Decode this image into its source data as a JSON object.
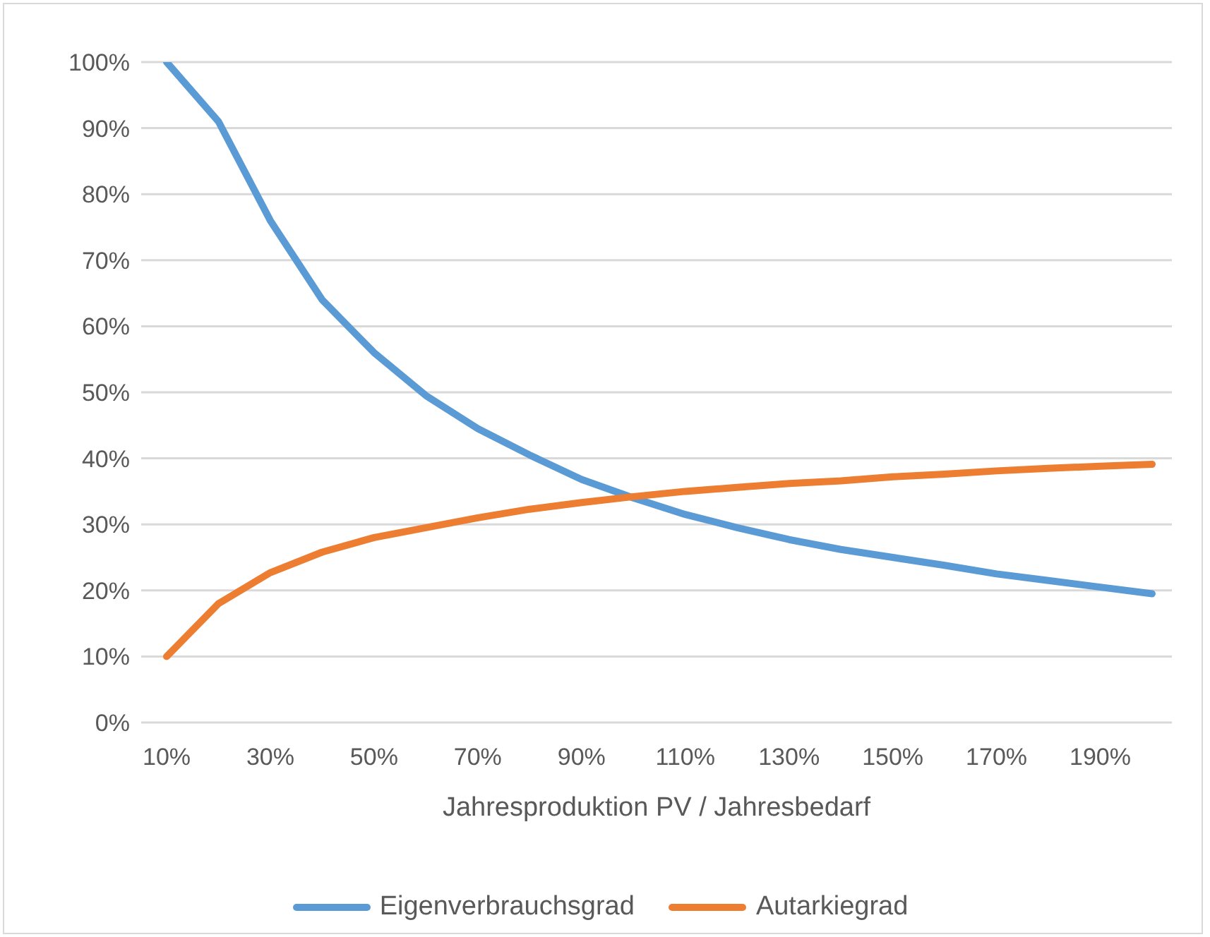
{
  "chart_data": {
    "type": "line",
    "xlabel": "Jahresproduktion PV / Jahresbedarf",
    "categories": [
      "10%",
      null,
      "30%",
      null,
      "50%",
      null,
      "70%",
      null,
      "90%",
      null,
      "110%",
      null,
      "130%",
      null,
      "150%",
      null,
      "170%",
      null,
      "190%",
      null
    ],
    "series": [
      {
        "name": "Eigenverbrauchsgrad",
        "color": "#5b9bd5",
        "values": [
          100,
          91,
          76,
          64,
          56,
          49.5,
          44.5,
          40.5,
          36.8,
          34,
          31.5,
          29.5,
          27.7,
          26.2,
          25,
          23.8,
          22.5,
          21.5,
          20.5,
          19.5
        ]
      },
      {
        "name": "Autarkiegrad",
        "color": "#ed7d31",
        "values": [
          10,
          18,
          22.7,
          25.8,
          28,
          29.5,
          31,
          32.3,
          33.3,
          34.2,
          35,
          35.6,
          36.2,
          36.6,
          37.2,
          37.6,
          38.1,
          38.5,
          38.8,
          39.1
        ]
      }
    ],
    "ylim": [
      0,
      100
    ],
    "yticks": [
      {
        "value": 0,
        "label": "0%"
      },
      {
        "value": 10,
        "label": "10%"
      },
      {
        "value": 20,
        "label": "20%"
      },
      {
        "value": 30,
        "label": "30%"
      },
      {
        "value": 40,
        "label": "40%"
      },
      {
        "value": 50,
        "label": "50%"
      },
      {
        "value": 60,
        "label": "60%"
      },
      {
        "value": 70,
        "label": "70%"
      },
      {
        "value": 80,
        "label": "80%"
      },
      {
        "value": 90,
        "label": "90%"
      },
      {
        "value": 100,
        "label": "100%"
      }
    ],
    "grid": "y",
    "legend": "bottom",
    "marker": "none",
    "line_style": "solid"
  }
}
